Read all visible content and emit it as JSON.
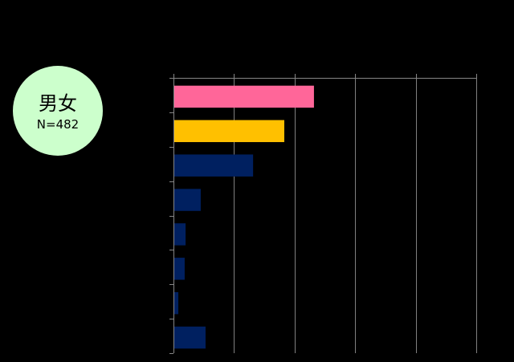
{
  "badge": {
    "group": "男女",
    "sample_size": "N=482",
    "color": "#CCFFCC"
  },
  "chart_data": {
    "type": "bar",
    "orientation": "horizontal",
    "title": "",
    "xlabel": "",
    "ylabel": "",
    "xlim": [
      0,
      1
    ],
    "x_ticks": [
      0,
      0.2,
      0.4,
      0.6,
      0.8,
      1.0
    ],
    "grid": true,
    "values": [
      0.464,
      0.366,
      0.263,
      0.09,
      0.04,
      0.037,
      0.016,
      0.106
    ],
    "bar_colors": [
      "#FF6699",
      "#FFC000",
      "#002060",
      "#002060",
      "#002060",
      "#002060",
      "#002060",
      "#002060"
    ],
    "axis_color": "#868686",
    "grid_color": "#808080",
    "background": "#000000"
  }
}
